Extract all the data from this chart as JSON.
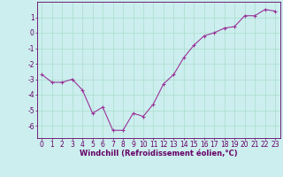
{
  "x": [
    0,
    1,
    2,
    3,
    4,
    5,
    6,
    7,
    8,
    9,
    10,
    11,
    12,
    13,
    14,
    15,
    16,
    17,
    18,
    19,
    20,
    21,
    22,
    23
  ],
  "y": [
    -2.7,
    -3.2,
    -3.2,
    -3.0,
    -3.7,
    -5.2,
    -4.8,
    -6.3,
    -6.3,
    -5.2,
    -5.4,
    -4.6,
    -3.3,
    -2.7,
    -1.6,
    -0.8,
    -0.2,
    0.0,
    0.3,
    0.4,
    1.1,
    1.1,
    1.5,
    1.4
  ],
  "line_color": "#993399",
  "marker": "+",
  "marker_size": 3,
  "bg_color": "#cceeee",
  "grid_color": "#aaddcc",
  "xlabel": "Windchill (Refroidissement éolien,°C)",
  "xlim": [
    -0.5,
    23.5
  ],
  "ylim": [
    -6.8,
    2.0
  ],
  "yticks": [
    1,
    0,
    -1,
    -2,
    -3,
    -4,
    -5,
    -6
  ],
  "xtick_labels": [
    "0",
    "1",
    "2",
    "3",
    "4",
    "5",
    "6",
    "7",
    "8",
    "9",
    "10",
    "11",
    "12",
    "13",
    "14",
    "15",
    "16",
    "17",
    "18",
    "19",
    "20",
    "21",
    "22",
    "23"
  ],
  "tick_color": "#660066",
  "label_fontsize": 5.5,
  "xlabel_fontsize": 6
}
